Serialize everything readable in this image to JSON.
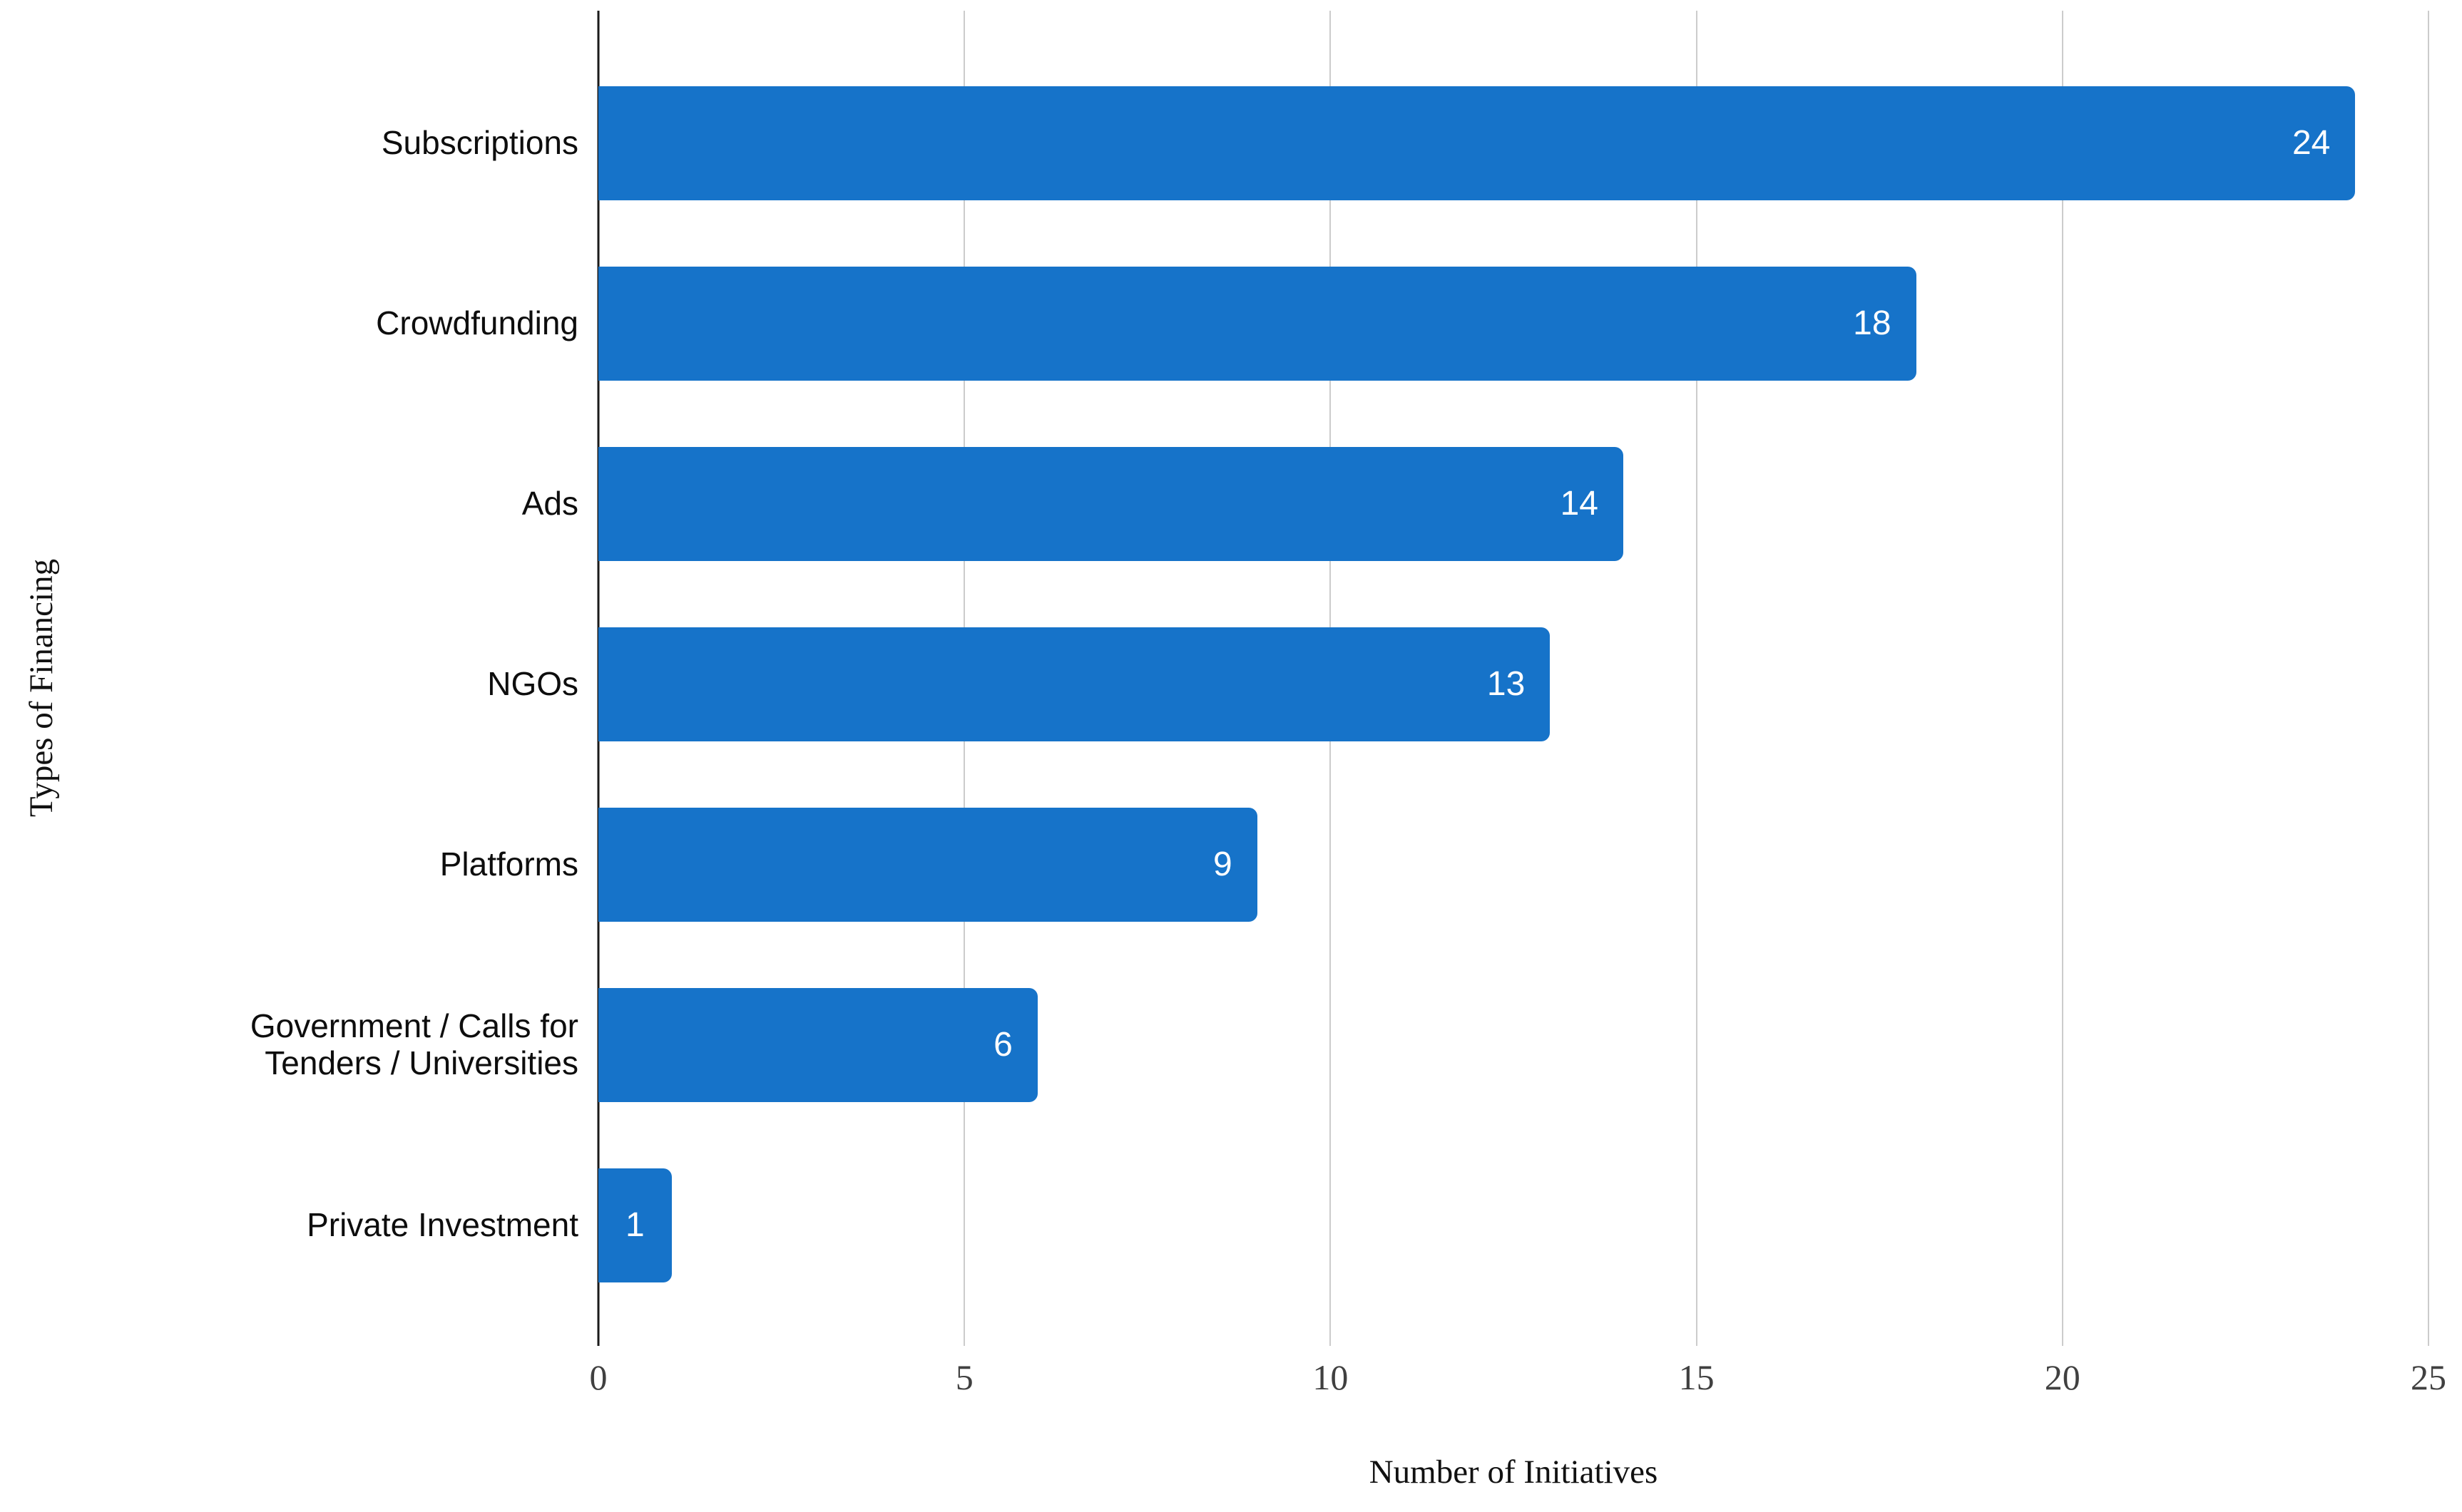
{
  "chart_data": {
    "type": "bar",
    "orientation": "horizontal",
    "title": "",
    "xlabel": "Number of Initiatives",
    "ylabel": "Types of Financing",
    "categories": [
      "Subscriptions",
      "Crowdfunding",
      "Ads",
      "NGOs",
      "Platforms",
      "Government / Calls for Tenders / Universities",
      "Private Investment"
    ],
    "values": [
      24,
      18,
      14,
      13,
      9,
      6,
      1
    ],
    "value_labels": [
      "24",
      "18",
      "14",
      "13",
      "9",
      "6",
      "1"
    ],
    "xlim": [
      0,
      25
    ],
    "xticks": [
      0,
      5,
      10,
      15,
      20,
      25
    ],
    "grid": true,
    "legend_position": "none",
    "colors": {
      "bar": "#1673C9",
      "value_label": "#FFFFFF",
      "gridline": "#CCCCCC",
      "axis_line": "#1A1A1A",
      "tick_label": "#404040",
      "axis_title": "#111111",
      "background": "#FFFFFF"
    }
  }
}
